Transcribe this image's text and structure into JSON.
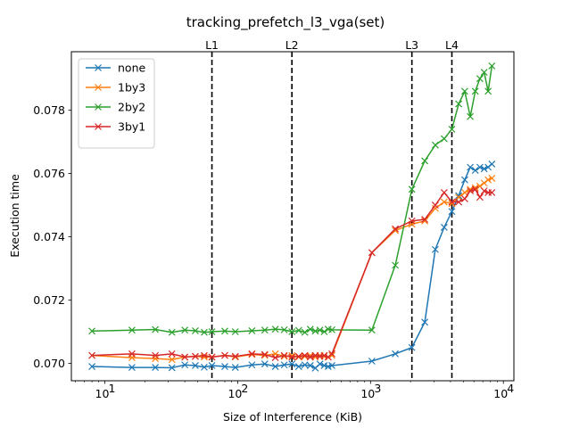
{
  "chart_data": {
    "type": "line",
    "title": "tracking_prefetch_l3_vga(set)",
    "xlabel": "Size of Interference (KiB)",
    "ylabel": "Execution time",
    "xscale": "log",
    "xlim": [
      5.6,
      12000
    ],
    "ylim": [
      0.06945,
      0.07985
    ],
    "y_ticks": [
      0.07,
      0.072,
      0.074,
      0.076,
      0.078
    ],
    "y_tick_labels": [
      "0.070",
      "0.072",
      "0.074",
      "0.076",
      "0.078"
    ],
    "x_ticks": [
      10,
      100,
      1000,
      10000
    ],
    "x_tick_labels": [
      {
        "base": "10",
        "exp": "1"
      },
      {
        "base": "10",
        "exp": "2"
      },
      {
        "base": "10",
        "exp": "3"
      },
      {
        "base": "10",
        "exp": "4"
      }
    ],
    "legend_position": "top-left",
    "marker": "x",
    "vlines": [
      {
        "label": "L1",
        "x": 64
      },
      {
        "label": "L2",
        "x": 256
      },
      {
        "label": "L3",
        "x": 2048
      },
      {
        "label": "L4",
        "x": 4096
      }
    ],
    "x": [
      8,
      16,
      24,
      32,
      40,
      48,
      56,
      64,
      80,
      96,
      128,
      160,
      192,
      224,
      256,
      288,
      320,
      352,
      384,
      416,
      448,
      480,
      512,
      1024,
      1536,
      2048,
      2560,
      3072,
      3584,
      4096,
      4608,
      5120,
      5632,
      6144,
      6656,
      7168,
      7680,
      8192
    ],
    "series": [
      {
        "name": "none",
        "color": "#1f77b4",
        "values": [
          0.0699,
          0.06987,
          0.06987,
          0.06986,
          0.06995,
          0.06993,
          0.06988,
          0.06993,
          0.0699,
          0.06987,
          0.06995,
          0.06998,
          0.0699,
          0.06995,
          0.06998,
          0.0699,
          0.06995,
          0.06993,
          0.06985,
          0.06998,
          0.06993,
          0.0699,
          0.06993,
          0.07007,
          0.0703,
          0.0705,
          0.0713,
          0.0736,
          0.0743,
          0.0748,
          0.0753,
          0.0758,
          0.0762,
          0.0761,
          0.0762,
          0.07615,
          0.0762,
          0.0763
        ]
      },
      {
        "name": "1by3",
        "color": "#ff7f0e",
        "values": [
          0.07025,
          0.07018,
          0.07015,
          0.07012,
          0.0702,
          0.07022,
          0.0702,
          0.0702,
          0.07025,
          0.0702,
          0.07028,
          0.07025,
          0.0703,
          0.07022,
          0.07025,
          0.0702,
          0.07022,
          0.07025,
          0.0702,
          0.07025,
          0.07022,
          0.0702,
          0.07025,
          0.0735,
          0.0742,
          0.0744,
          0.0745,
          0.0749,
          0.0751,
          0.07505,
          0.07525,
          0.0754,
          0.0755,
          0.07555,
          0.0756,
          0.0757,
          0.0758,
          0.07585
        ]
      },
      {
        "name": "2by2",
        "color": "#2ca02c",
        "values": [
          0.07102,
          0.07105,
          0.07107,
          0.07098,
          0.07105,
          0.07103,
          0.07098,
          0.071,
          0.07102,
          0.071,
          0.07103,
          0.07105,
          0.07108,
          0.07106,
          0.071,
          0.07104,
          0.07098,
          0.07108,
          0.07102,
          0.07105,
          0.071,
          0.07108,
          0.07106,
          0.07105,
          0.0731,
          0.0755,
          0.0764,
          0.0769,
          0.0771,
          0.0774,
          0.0782,
          0.0786,
          0.0778,
          0.0786,
          0.079,
          0.0792,
          0.0786,
          0.0794
        ]
      },
      {
        "name": "3by1",
        "color": "#d62728",
        "values": [
          0.07025,
          0.0703,
          0.07025,
          0.0703,
          0.0702,
          0.07022,
          0.07025,
          0.0702,
          0.07025,
          0.07022,
          0.0703,
          0.07028,
          0.07018,
          0.07025,
          0.0702,
          0.07022,
          0.07025,
          0.0702,
          0.07025,
          0.07022,
          0.07025,
          0.0702,
          0.0703,
          0.0735,
          0.07425,
          0.0745,
          0.07455,
          0.075,
          0.0754,
          0.0751,
          0.0751,
          0.0752,
          0.07545,
          0.0755,
          0.07525,
          0.07545,
          0.0754,
          0.0754
        ]
      }
    ]
  }
}
